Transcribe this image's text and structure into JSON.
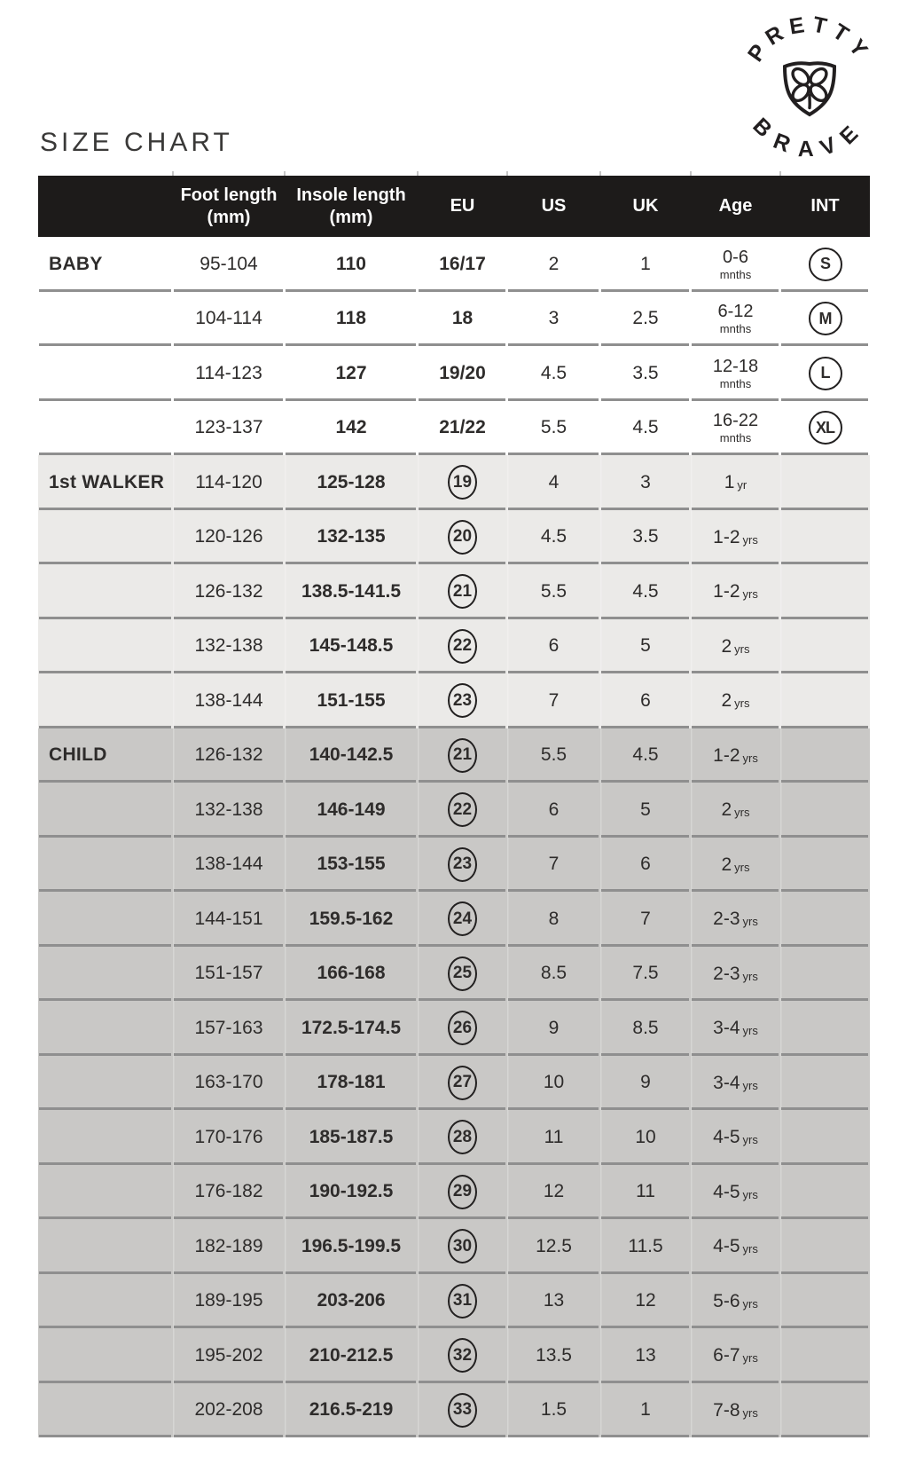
{
  "title": "SIZE CHART",
  "logo": {
    "top_text": "PRETTY",
    "bottom_text": "BRAVE",
    "icon": "shield-clover-icon",
    "color": "#221f20"
  },
  "table": {
    "headers": {
      "group": "",
      "foot_line1": "Foot length",
      "foot_line2": "(mm)",
      "insole_line1": "Insole length",
      "insole_line2": "(mm)",
      "eu": "EU",
      "us": "US",
      "uk": "UK",
      "age": "Age",
      "int": "INT"
    },
    "colors": {
      "header_bg": "#1d1b1a",
      "header_text": "#ffffff",
      "baby_bg": "#ffffff",
      "walker_bg": "#ebeae8",
      "child_bg": "#c9c8c6",
      "separator_line": "#8f8f8f",
      "text": "#2e2c2b",
      "circle_outline": "#222020"
    },
    "sections": [
      {
        "label": "BABY",
        "style": "baby",
        "eu_circled": false,
        "age_stacked": true,
        "rows": [
          {
            "foot": "95-104",
            "insole": "110",
            "eu": "16/17",
            "us": "2",
            "uk": "1",
            "age": "0-6",
            "age_unit": "mnths",
            "int": "S"
          },
          {
            "foot": "104-114",
            "insole": "118",
            "eu": "18",
            "us": "3",
            "uk": "2.5",
            "age": "6-12",
            "age_unit": "mnths",
            "int": "M"
          },
          {
            "foot": "114-123",
            "insole": "127",
            "eu": "19/20",
            "us": "4.5",
            "uk": "3.5",
            "age": "12-18",
            "age_unit": "mnths",
            "int": "L"
          },
          {
            "foot": "123-137",
            "insole": "142",
            "eu": "21/22",
            "us": "5.5",
            "uk": "4.5",
            "age": "16-22",
            "age_unit": "mnths",
            "int": "XL"
          }
        ]
      },
      {
        "label": "1st WALKER",
        "style": "walker",
        "eu_circled": true,
        "age_stacked": false,
        "rows": [
          {
            "foot": "114-120",
            "insole": "125-128",
            "eu": "19",
            "us": "4",
            "uk": "3",
            "age": "1",
            "age_unit": "yr",
            "int": ""
          },
          {
            "foot": "120-126",
            "insole": "132-135",
            "eu": "20",
            "us": "4.5",
            "uk": "3.5",
            "age": "1-2",
            "age_unit": "yrs",
            "int": ""
          },
          {
            "foot": "126-132",
            "insole": "138.5-141.5",
            "eu": "21",
            "us": "5.5",
            "uk": "4.5",
            "age": "1-2",
            "age_unit": "yrs",
            "int": ""
          },
          {
            "foot": "132-138",
            "insole": "145-148.5",
            "eu": "22",
            "us": "6",
            "uk": "5",
            "age": "2",
            "age_unit": "yrs",
            "int": ""
          },
          {
            "foot": "138-144",
            "insole": "151-155",
            "eu": "23",
            "us": "7",
            "uk": "6",
            "age": "2",
            "age_unit": "yrs",
            "int": ""
          }
        ]
      },
      {
        "label": "CHILD",
        "style": "child",
        "eu_circled": true,
        "age_stacked": false,
        "rows": [
          {
            "foot": "126-132",
            "insole": "140-142.5",
            "eu": "21",
            "us": "5.5",
            "uk": "4.5",
            "age": "1-2",
            "age_unit": "yrs",
            "int": ""
          },
          {
            "foot": "132-138",
            "insole": "146-149",
            "eu": "22",
            "us": "6",
            "uk": "5",
            "age": "2",
            "age_unit": "yrs",
            "int": ""
          },
          {
            "foot": "138-144",
            "insole": "153-155",
            "eu": "23",
            "us": "7",
            "uk": "6",
            "age": "2",
            "age_unit": "yrs",
            "int": ""
          },
          {
            "foot": "144-151",
            "insole": "159.5-162",
            "eu": "24",
            "us": "8",
            "uk": "7",
            "age": "2-3",
            "age_unit": "yrs",
            "int": ""
          },
          {
            "foot": "151-157",
            "insole": "166-168",
            "eu": "25",
            "us": "8.5",
            "uk": "7.5",
            "age": "2-3",
            "age_unit": "yrs",
            "int": ""
          },
          {
            "foot": "157-163",
            "insole": "172.5-174.5",
            "eu": "26",
            "us": "9",
            "uk": "8.5",
            "age": "3-4",
            "age_unit": "yrs",
            "int": ""
          },
          {
            "foot": "163-170",
            "insole": "178-181",
            "eu": "27",
            "us": "10",
            "uk": "9",
            "age": "3-4",
            "age_unit": "yrs",
            "int": ""
          },
          {
            "foot": "170-176",
            "insole": "185-187.5",
            "eu": "28",
            "us": "11",
            "uk": "10",
            "age": "4-5",
            "age_unit": "yrs",
            "int": ""
          },
          {
            "foot": "176-182",
            "insole": "190-192.5",
            "eu": "29",
            "us": "12",
            "uk": "11",
            "age": "4-5",
            "age_unit": "yrs",
            "int": ""
          },
          {
            "foot": "182-189",
            "insole": "196.5-199.5",
            "eu": "30",
            "us": "12.5",
            "uk": "11.5",
            "age": "4-5",
            "age_unit": "yrs",
            "int": ""
          },
          {
            "foot": "189-195",
            "insole": "203-206",
            "eu": "31",
            "us": "13",
            "uk": "12",
            "age": "5-6",
            "age_unit": "yrs",
            "int": ""
          },
          {
            "foot": "195-202",
            "insole": "210-212.5",
            "eu": "32",
            "us": "13.5",
            "uk": "13",
            "age": "6-7",
            "age_unit": "yrs",
            "int": ""
          },
          {
            "foot": "202-208",
            "insole": "216.5-219",
            "eu": "33",
            "us": "1.5",
            "uk": "1",
            "age": "7-8",
            "age_unit": "yrs",
            "int": ""
          }
        ]
      }
    ]
  }
}
